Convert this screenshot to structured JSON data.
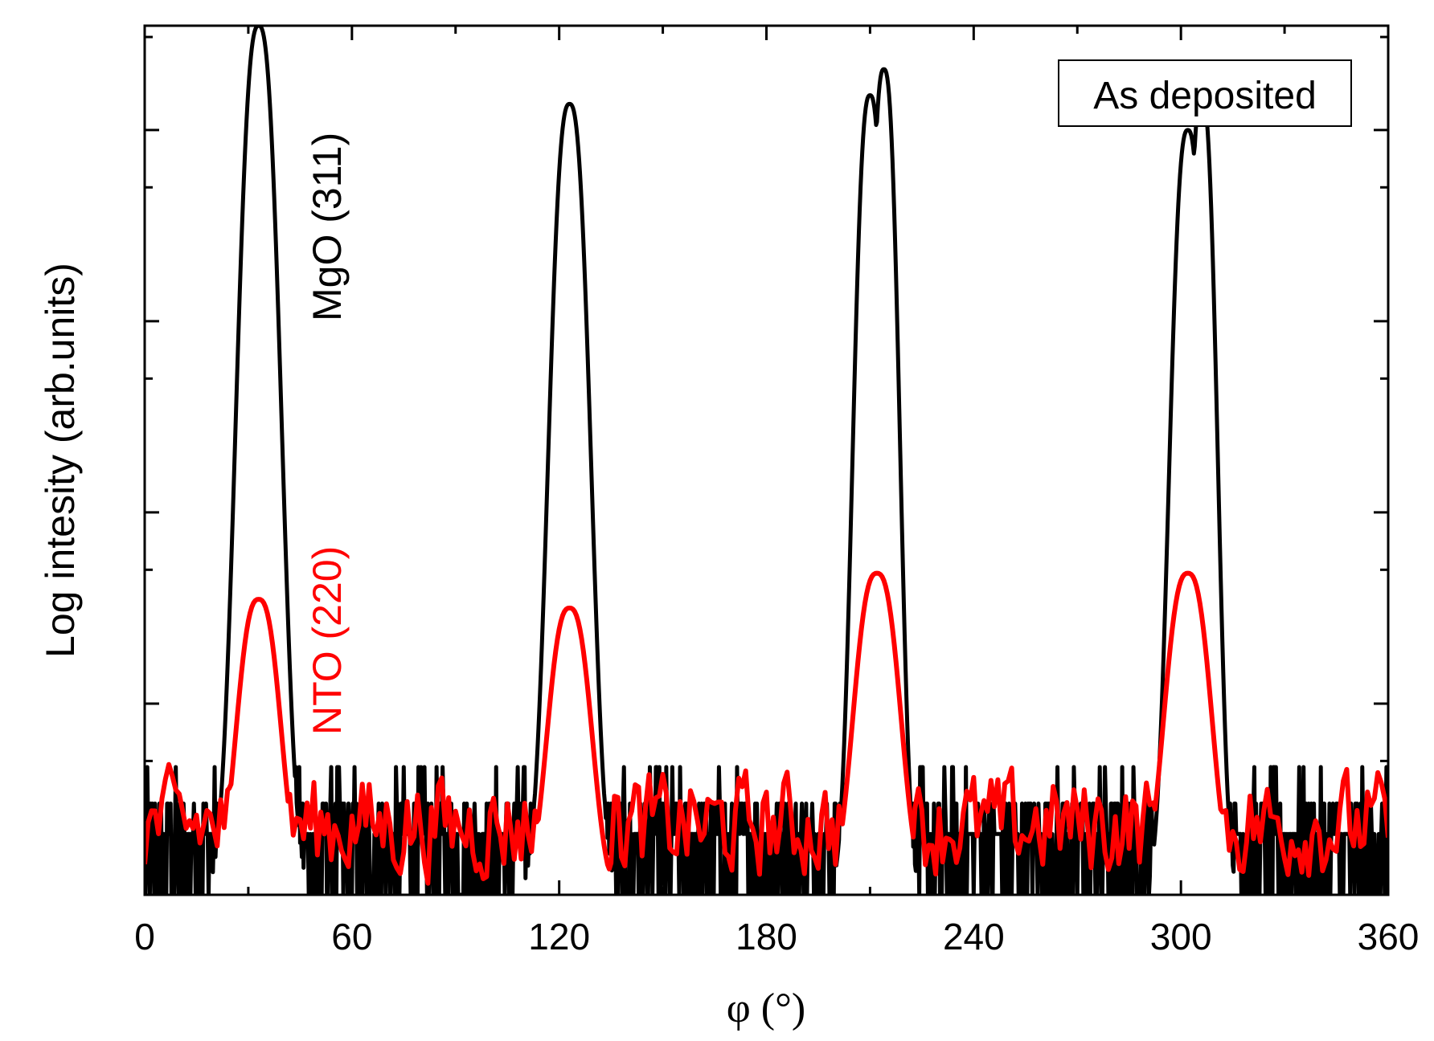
{
  "chart_data": {
    "type": "line",
    "title": "",
    "xlabel": "φ (°)",
    "ylabel": "Log intesity (arb.units)",
    "xlim": [
      0,
      360
    ],
    "ylim": [
      0,
      100
    ],
    "xticks": [
      0,
      60,
      120,
      180,
      240,
      300,
      360
    ],
    "xtick_labels": [
      "0",
      "60",
      "120",
      "180",
      "240",
      "300",
      "360"
    ],
    "yticks_major": [
      22,
      44,
      66,
      88
    ],
    "yticks_minor": [
      15.4,
      37.4,
      59.4,
      81.4,
      98.7
    ],
    "yticklabels_shown": false,
    "grid": false,
    "legend_box": {
      "text": "As deposited",
      "position": "top-right"
    },
    "annotations": [
      {
        "text": "MgO (311)",
        "color": "#000000",
        "series": "MgO (311)",
        "x": 55,
        "y": 78,
        "rotation": -90
      },
      {
        "text": "NTO (220)",
        "color": "#ff0000",
        "series": "NTO (220)",
        "x": 55,
        "y": 33,
        "rotation": -90
      }
    ],
    "series": [
      {
        "name": "MgO (311)",
        "color": "#000000",
        "noise_floor": {
          "baseline": 0,
          "levels": [
            7,
            10.5,
            14.7
          ]
        },
        "peaks": [
          {
            "center": 33,
            "height": 100,
            "width": 8.5
          },
          {
            "center": 123,
            "height": 91,
            "width": 8
          },
          {
            "center": 210,
            "height": 92,
            "width": 6.5
          },
          {
            "center": 214,
            "height": 95,
            "width": 6
          },
          {
            "center": 302,
            "height": 88,
            "width": 7
          },
          {
            "center": 306,
            "height": 92,
            "width": 6
          }
        ]
      },
      {
        "name": "NTO (220)",
        "color": "#ff0000",
        "baseline_range": [
          0,
          16
        ],
        "peaks": [
          {
            "center": 33,
            "height": 34,
            "width": 8.5
          },
          {
            "center": 123,
            "height": 33,
            "width": 8.5
          },
          {
            "center": 212,
            "height": 37,
            "width": 9
          },
          {
            "center": 302,
            "height": 37,
            "width": 9
          }
        ]
      }
    ]
  }
}
